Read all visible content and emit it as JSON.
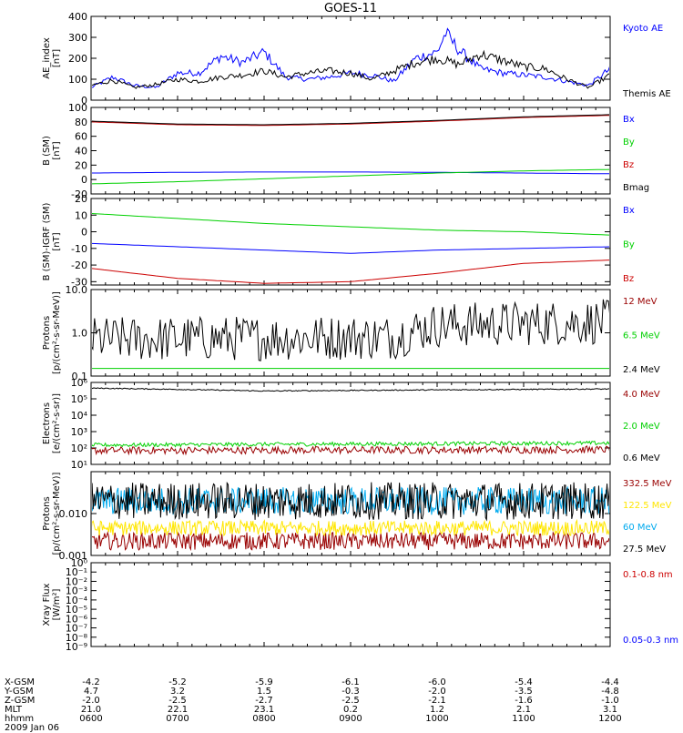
{
  "title": "GOES-11",
  "date": "2009 Jan 06",
  "time_ticks": [
    "0600",
    "0700",
    "0800",
    "0900",
    "1000",
    "1100",
    "1200"
  ],
  "ephemeris": {
    "labels": [
      "X-GSM",
      "Y-GSM",
      "Z-GSM",
      "MLT",
      "hhmm"
    ],
    "rows": [
      [
        "-4.2",
        "-5.2",
        "-5.9",
        "-6.1",
        "-6.0",
        "-5.4",
        "-4.4"
      ],
      [
        "4.7",
        "3.2",
        "1.5",
        "-0.3",
        "-2.0",
        "-3.5",
        "-4.8"
      ],
      [
        "-2.0",
        "-2.5",
        "-2.7",
        "-2.5",
        "-2.1",
        "-1.6",
        "-1.0"
      ],
      [
        "21.0",
        "22.1",
        "23.1",
        "0.2",
        "1.2",
        "2.1",
        "3.1"
      ]
    ]
  },
  "colors": {
    "black": "#000000",
    "blue": "#0000ff",
    "green": "#00d000",
    "red": "#cc0000",
    "darkred": "#990000",
    "yellow": "#ffe600",
    "cyan": "#00aaee"
  },
  "chart_data": [
    {
      "type": "line",
      "ylabel": "AE_index [nT]",
      "ylim": [
        0,
        400
      ],
      "yticks": [
        "0",
        "100",
        "200",
        "300",
        "400"
      ],
      "series": [
        {
          "name": "Kyoto AE",
          "color": "#0000ff",
          "x": [
            6.0,
            6.25,
            6.5,
            6.75,
            7.0,
            7.25,
            7.5,
            7.75,
            8.0,
            8.25,
            8.5,
            8.75,
            9.0,
            9.25,
            9.5,
            9.75,
            10.0,
            10.1,
            10.25,
            10.5,
            10.75,
            11.0,
            11.25,
            11.5,
            11.75,
            12.0
          ],
          "y": [
            60,
            110,
            70,
            60,
            130,
            130,
            210,
            180,
            230,
            110,
            100,
            110,
            130,
            120,
            90,
            200,
            230,
            320,
            240,
            150,
            130,
            120,
            110,
            90,
            70,
            150
          ]
        },
        {
          "name": "Themis AE",
          "color": "#000000",
          "x": [
            6.0,
            6.25,
            6.5,
            6.75,
            7.0,
            7.25,
            7.5,
            7.75,
            8.0,
            8.25,
            8.5,
            8.75,
            9.0,
            9.25,
            9.5,
            9.75,
            10.0,
            10.25,
            10.5,
            10.75,
            11.0,
            11.25,
            11.5,
            11.75,
            12.0
          ],
          "y": [
            70,
            95,
            60,
            75,
            100,
            90,
            110,
            120,
            140,
            110,
            130,
            140,
            130,
            100,
            140,
            180,
            200,
            170,
            220,
            190,
            160,
            150,
            100,
            60,
            120
          ]
        }
      ]
    },
    {
      "type": "line",
      "ylabel": "B (SM) [nT]",
      "ylim": [
        -20,
        100
      ],
      "yticks": [
        "-20",
        "0",
        "20",
        "40",
        "60",
        "80",
        "100"
      ],
      "series": [
        {
          "name": "Bx",
          "color": "#0000ff",
          "x": [
            6,
            7,
            8,
            9,
            10,
            11,
            12
          ],
          "y": [
            9,
            10,
            10.5,
            10.5,
            10,
            9,
            8
          ]
        },
        {
          "name": "By",
          "color": "#00d000",
          "x": [
            6,
            7,
            8,
            9,
            10,
            11,
            12
          ],
          "y": [
            -6,
            -3,
            1,
            5,
            9,
            12,
            14
          ]
        },
        {
          "name": "Bz",
          "color": "#cc0000",
          "x": [
            6,
            7,
            8,
            9,
            10,
            11,
            12
          ],
          "y": [
            80,
            76,
            75,
            77,
            81,
            86,
            89
          ]
        },
        {
          "name": "Bmag",
          "color": "#000000",
          "x": [
            6,
            7,
            8,
            9,
            10,
            11,
            12
          ],
          "y": [
            81,
            77,
            76,
            78,
            82,
            87,
            90
          ]
        }
      ]
    },
    {
      "type": "line",
      "ylabel": "B (SM)-IGRF (SM) [nT]",
      "ylim": [
        -32,
        20
      ],
      "yticks": [
        "-30",
        "-20",
        "-10",
        "0",
        "10",
        "20"
      ],
      "series": [
        {
          "name": "Bx",
          "color": "#0000ff",
          "x": [
            6,
            7,
            8,
            9,
            10,
            11,
            12
          ],
          "y": [
            -7,
            -9,
            -11,
            -13,
            -11,
            -10,
            -9
          ]
        },
        {
          "name": "By",
          "color": "#00d000",
          "x": [
            6,
            7,
            8,
            9,
            10,
            11,
            12
          ],
          "y": [
            11,
            8,
            5,
            3,
            1,
            0,
            -2
          ]
        },
        {
          "name": "Bz",
          "color": "#cc0000",
          "x": [
            6,
            7,
            8,
            9,
            10,
            11,
            12
          ],
          "y": [
            -22,
            -28,
            -31,
            -30,
            -25,
            -19,
            -17
          ]
        }
      ]
    },
    {
      "type": "line",
      "ylabel": "Protons [p/(cm²-s-sr-MeV)]",
      "yscale": "log",
      "ylim": [
        0.1,
        10
      ],
      "yticks": [
        "0.1",
        "1.0",
        "10.0"
      ],
      "series": [
        {
          "name": "12 MeV",
          "color": "#990000",
          "x": [
            6,
            12
          ],
          "y": [
            0.1,
            0.1
          ]
        },
        {
          "name": "6.5 MeV",
          "color": "#00d000",
          "x": [
            6,
            12
          ],
          "y": [
            0.15,
            0.15
          ]
        },
        {
          "name": "2.4 MeV",
          "color": "#000000",
          "x": [
            6,
            9.5,
            10,
            12
          ],
          "y": [
            0.7,
            0.8,
            1.5,
            1.8
          ]
        }
      ]
    },
    {
      "type": "line",
      "ylabel": "Electrons [e/(cm²-s-sr)]",
      "yscale": "log",
      "ylim": [
        10,
        1000000
      ],
      "yticks": [
        "10¹",
        "10²",
        "10³",
        "10⁴",
        "10⁵",
        "10⁶"
      ],
      "series": [
        {
          "name": "4.0 MeV",
          "color": "#990000",
          "x": [
            6,
            12
          ],
          "y": [
            70,
            80
          ]
        },
        {
          "name": "2.0 MeV",
          "color": "#00d000",
          "x": [
            6,
            12
          ],
          "y": [
            150,
            200
          ]
        },
        {
          "name": "0.6 MeV",
          "color": "#000000",
          "x": [
            6,
            8,
            10,
            12
          ],
          "y": [
            450000,
            300000,
            350000,
            400000
          ]
        }
      ]
    },
    {
      "type": "line",
      "ylabel": "Protons [p/(cm²-s-sr-MeV)]",
      "yscale": "log",
      "ylim": [
        0.001,
        0.1
      ],
      "yticks": [
        "0.001",
        "0.010"
      ],
      "series": [
        {
          "name": "332.5 MeV",
          "color": "#990000",
          "x": [
            6,
            12
          ],
          "y": [
            0.0022,
            0.0022
          ]
        },
        {
          "name": "122.5 MeV",
          "color": "#ffe600",
          "x": [
            6,
            12
          ],
          "y": [
            0.0045,
            0.0045
          ]
        },
        {
          "name": "60 MeV",
          "color": "#00aaee",
          "x": [
            6,
            12
          ],
          "y": [
            0.02,
            0.02
          ]
        },
        {
          "name": "27.5 MeV",
          "color": "#000000",
          "x": [
            6,
            12
          ],
          "y": [
            0.02,
            0.02
          ]
        }
      ]
    },
    {
      "type": "line",
      "ylabel": "Xray Flux [W/m²]",
      "yscale": "log",
      "ylim": [
        1e-09,
        1
      ],
      "yticks": [
        "10⁻⁹",
        "10⁻⁸",
        "10⁻⁷",
        "10⁻⁶",
        "10⁻⁵",
        "10⁻⁴",
        "10⁻³",
        "10⁻²",
        "10⁻¹",
        "10⁰"
      ],
      "series": [
        {
          "name": "0.1-0.8 nm",
          "color": "#cc0000",
          "x": [],
          "y": []
        },
        {
          "name": "0.05-0.3 nm",
          "color": "#0000ff",
          "x": [],
          "y": []
        }
      ]
    }
  ]
}
